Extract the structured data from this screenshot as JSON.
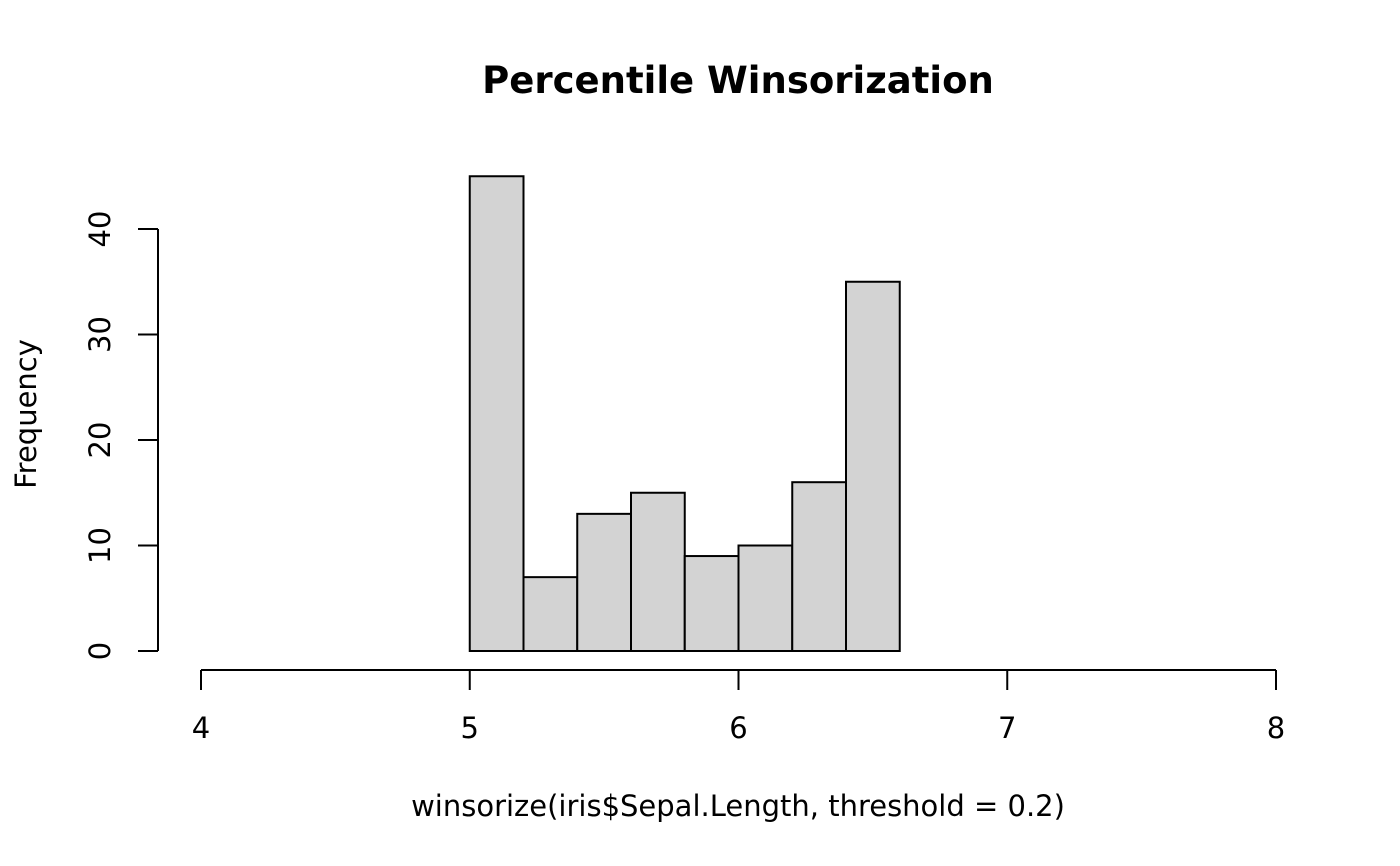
{
  "chart_data": {
    "type": "bar",
    "title": "Percentile Winsorization",
    "xlabel": "winsorize(iris$Sepal.Length, threshold = 0.2)",
    "ylabel": "Frequency",
    "bins": [
      {
        "start": 5.0,
        "end": 5.2,
        "count": 45
      },
      {
        "start": 5.2,
        "end": 5.4,
        "count": 7
      },
      {
        "start": 5.4,
        "end": 5.6,
        "count": 13
      },
      {
        "start": 5.6,
        "end": 5.8,
        "count": 15
      },
      {
        "start": 5.8,
        "end": 6.0,
        "count": 9
      },
      {
        "start": 6.0,
        "end": 6.2,
        "count": 10
      },
      {
        "start": 6.2,
        "end": 6.4,
        "count": 16
      },
      {
        "start": 6.4,
        "end": 6.6,
        "count": 35
      }
    ],
    "xlim": [
      4,
      8
    ],
    "ylim": [
      0,
      45
    ],
    "x_ticks": [
      4,
      5,
      6,
      7,
      8
    ],
    "y_ticks": [
      0,
      10,
      20,
      30,
      40
    ],
    "grid": false,
    "colors": {
      "bar_fill": "#d3d3d3",
      "bar_stroke": "#000000",
      "background": "#ffffff"
    }
  }
}
